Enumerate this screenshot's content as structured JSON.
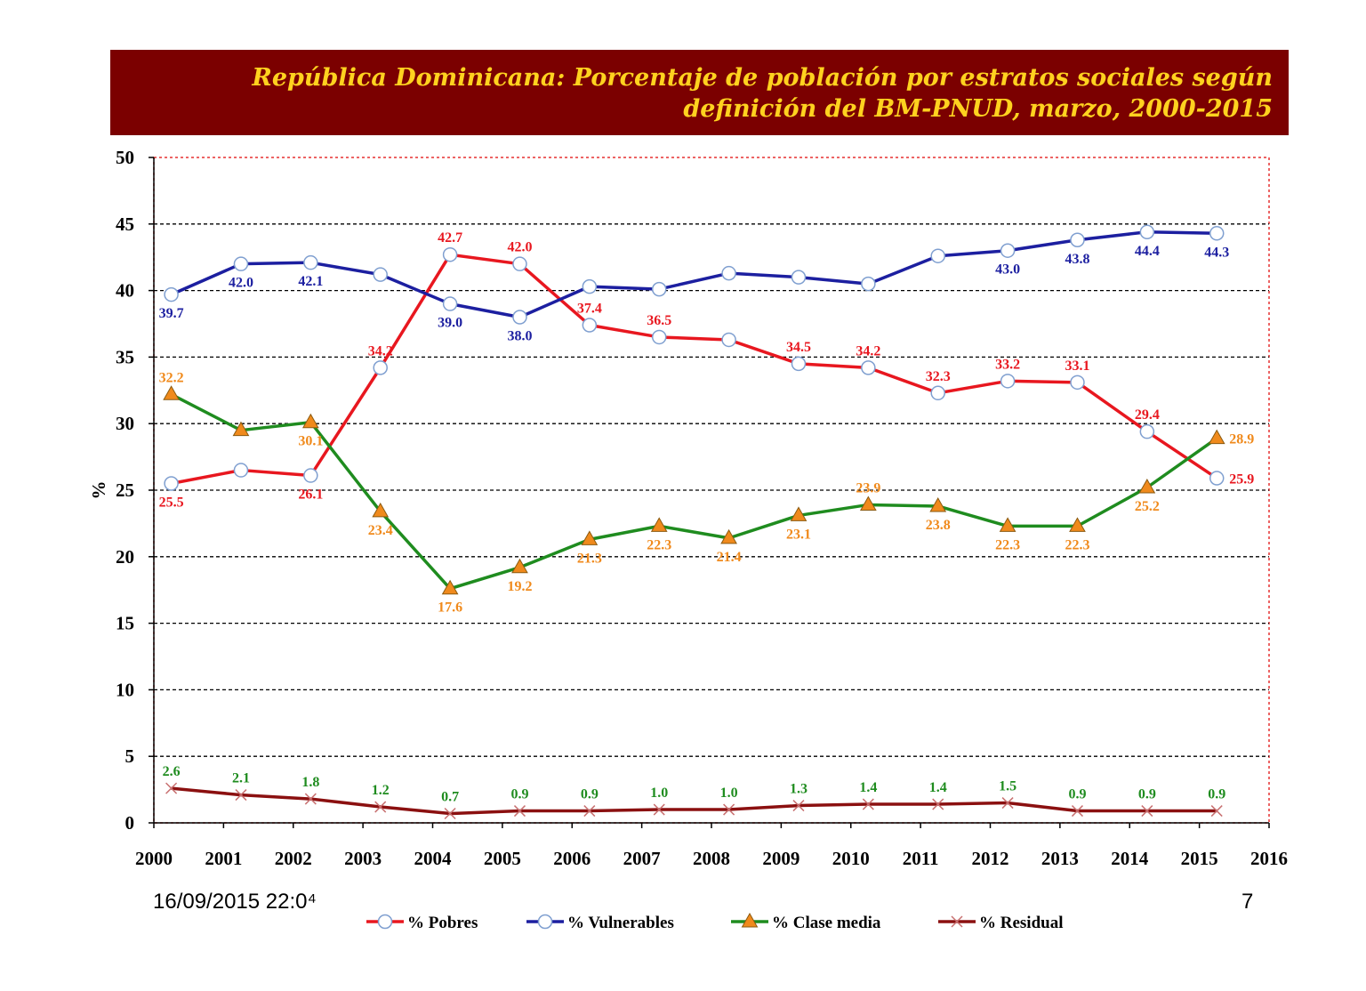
{
  "chart_data": {
    "type": "line",
    "title": "República Dominicana:  Porcentaje de población por estratos sociales según definición del BM-PNUD, marzo, 2000-2015",
    "ylabel": "%",
    "xlabel": "",
    "ylim": [
      0,
      50
    ],
    "yticks": [
      "0",
      "5",
      "10",
      "15",
      "20",
      "25",
      "30",
      "35",
      "40",
      "45",
      "50"
    ],
    "xlim": [
      2000,
      2016
    ],
    "xticks": [
      "2000",
      "2001",
      "2002",
      "2003",
      "2004",
      "2005",
      "2006",
      "2007",
      "2008",
      "2009",
      "2010",
      "2011",
      "2012",
      "2013",
      "2014",
      "2015",
      "2016"
    ],
    "grid": "horizontal dotted",
    "legend_position": "bottom",
    "x": [
      2000,
      2001,
      2002,
      2003,
      2004,
      2005,
      2006,
      2007,
      2008,
      2009,
      2010,
      2011,
      2012,
      2013,
      2014,
      2015
    ],
    "series": [
      {
        "name": "% Pobres",
        "color": "#e8171f",
        "label_color": "#e8171f",
        "marker": "circle-white",
        "values": [
          25.5,
          26.5,
          26.1,
          34.2,
          42.7,
          42.0,
          37.4,
          36.5,
          36.3,
          34.5,
          34.2,
          32.3,
          33.2,
          33.1,
          29.4,
          25.9
        ],
        "labels": [
          "25.5",
          "",
          "26.1",
          "34.2",
          "42.7",
          "42.0",
          "37.4",
          "36.5",
          "",
          "34.5",
          "34.2",
          "32.3",
          "33.2",
          "33.1",
          "29.4",
          "25.9"
        ]
      },
      {
        "name": "% Vulnerables",
        "color": "#1c1fa0",
        "label_color": "#1c1fa0",
        "marker": "circle-white",
        "values": [
          39.7,
          42.0,
          42.1,
          41.2,
          39.0,
          38.0,
          40.3,
          40.1,
          41.3,
          41.0,
          40.5,
          42.6,
          43.0,
          43.8,
          44.4,
          44.3
        ],
        "labels": [
          "39.7",
          "42.0",
          "42.1",
          "",
          "39.0",
          "38.0",
          "",
          "",
          "",
          "",
          "",
          "",
          "43.0",
          "43.8",
          "44.4",
          "44.3"
        ]
      },
      {
        "name": "% Clase media",
        "color": "#1f8c1f",
        "label_color": "#f08a1c",
        "marker": "triangle-orange",
        "values": [
          32.2,
          29.5,
          30.1,
          23.4,
          17.6,
          19.2,
          21.3,
          22.3,
          21.4,
          23.1,
          23.9,
          23.8,
          22.3,
          22.3,
          25.2,
          28.9
        ],
        "labels": [
          "32.2",
          "",
          "30.1",
          "23.4",
          "17.6",
          "19.2",
          "21.3",
          "22.3",
          "21.4",
          "23.1",
          "23.9",
          "23.8",
          "22.3",
          "22.3",
          "25.2",
          "28.9"
        ]
      },
      {
        "name": "% Residual",
        "color": "#8b1010",
        "label_color": "#1f8c1f",
        "marker": "x",
        "values": [
          2.6,
          2.1,
          1.8,
          1.2,
          0.7,
          0.9,
          0.9,
          1.0,
          1.0,
          1.3,
          1.4,
          1.4,
          1.5,
          0.9,
          0.9,
          0.9
        ],
        "labels": [
          "2.6",
          "2.1",
          "1.8",
          "1.2",
          "0.7",
          "0.9",
          "0.9",
          "1.0",
          "1.0",
          "1.3",
          "1.4",
          "1.4",
          "1.5",
          "0.9",
          "0.9",
          "0.9"
        ]
      }
    ]
  },
  "footer": {
    "date": "16/09/2015 22:0⁴",
    "page": "7"
  }
}
